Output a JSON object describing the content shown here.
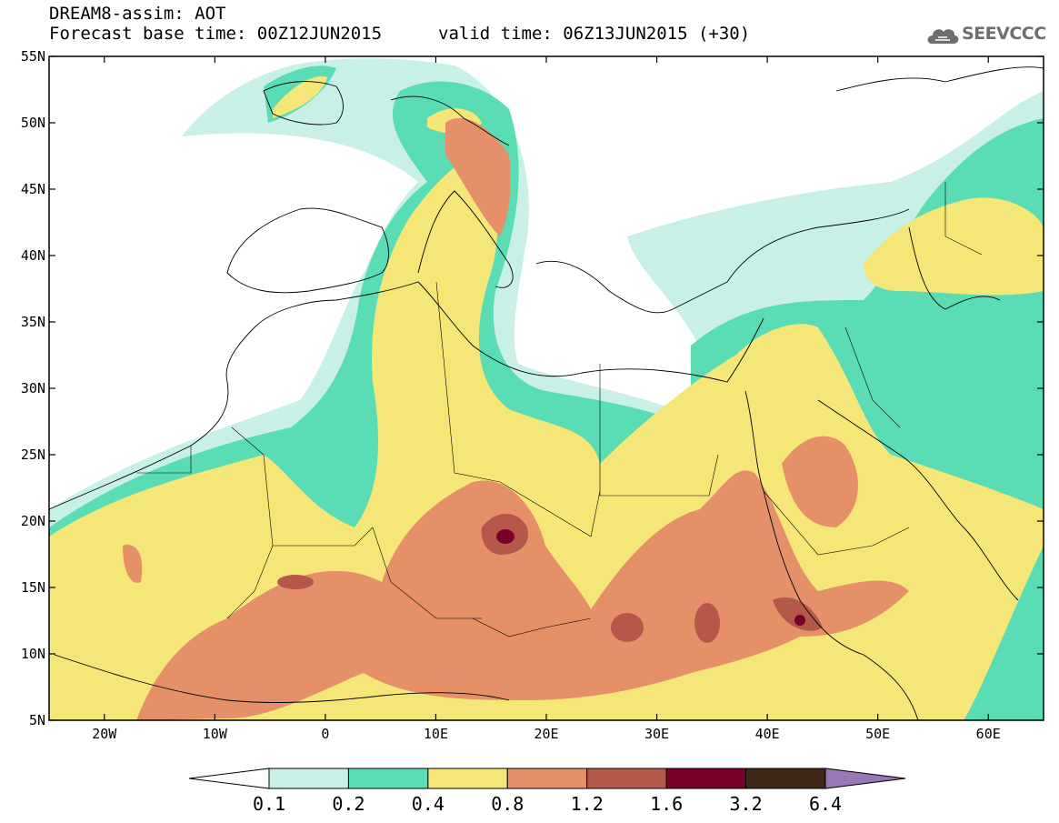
{
  "header": {
    "title_line1": "DREAM8-assim: AOT",
    "title_line2": "Forecast base time: 00Z12JUN2015",
    "valid_time": "valid time: 06Z13JUN2015 (+30)",
    "logo_text": "SEEVCCC",
    "logo_icon": "cloud-icon"
  },
  "map": {
    "lon_range": [
      -25,
      65
    ],
    "lat_range": [
      5,
      55
    ],
    "lat_labels": [
      {
        "lat": 55,
        "label": "55N"
      },
      {
        "lat": 50,
        "label": "50N"
      },
      {
        "lat": 45,
        "label": "45N"
      },
      {
        "lat": 40,
        "label": "40N"
      },
      {
        "lat": 35,
        "label": "35N"
      },
      {
        "lat": 30,
        "label": "30N"
      },
      {
        "lat": 25,
        "label": "25N"
      },
      {
        "lat": 20,
        "label": "20N"
      },
      {
        "lat": 15,
        "label": "15N"
      },
      {
        "lat": 10,
        "label": "10N"
      },
      {
        "lat": 5,
        "label": "5N"
      }
    ],
    "lon_labels": [
      {
        "lon": -20,
        "label": "20W"
      },
      {
        "lon": -10,
        "label": "10W"
      },
      {
        "lon": 0,
        "label": "0"
      },
      {
        "lon": 10,
        "label": "10E"
      },
      {
        "lon": 20,
        "label": "20E"
      },
      {
        "lon": 30,
        "label": "30E"
      },
      {
        "lon": 40,
        "label": "40E"
      },
      {
        "lon": 50,
        "label": "50E"
      },
      {
        "lon": 60,
        "label": "60E"
      }
    ]
  },
  "colorbar": {
    "labels": [
      "0.1",
      "0.2",
      "0.4",
      "0.8",
      "1.2",
      "1.6",
      "3.2",
      "6.4"
    ],
    "colors": [
      "#ffffff",
      "#c8f0e6",
      "#5adcb4",
      "#f5e678",
      "#e6906a",
      "#b4584a",
      "#780028",
      "#3c2814",
      "#9678b4"
    ]
  }
}
